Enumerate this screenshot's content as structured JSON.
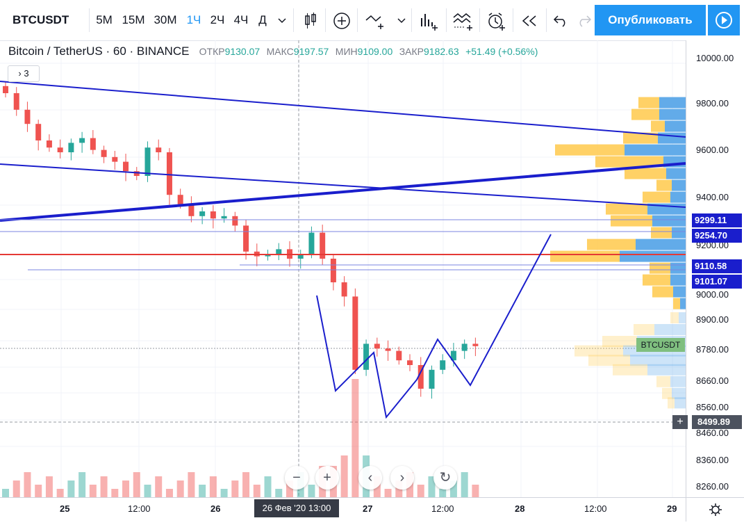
{
  "toolbar": {
    "symbol": "BTCUSDT",
    "intervals": [
      "5М",
      "15М",
      "30М",
      "1Ч",
      "2Ч",
      "4Ч",
      "Д"
    ],
    "active_interval": "1Ч",
    "publish_label": "Опубликовать"
  },
  "legend": {
    "title": "Bitcoin / TetherUS · 60 · BINANCE",
    "open_label": "ОТКР",
    "open": "9130.07",
    "high_label": "МАКС",
    "high": "9197.57",
    "low_label": "МИН",
    "low": "9109.00",
    "close_label": "ЗАКР",
    "close": "9182.63",
    "change": "+51.49 (+0.56%)",
    "indicators_count": "3"
  },
  "price_axis": {
    "ticks": [
      "10000.00",
      "9800.00",
      "9600.00",
      "9400.00",
      "9200.00",
      "9000.00",
      "8900.00",
      "8780.00",
      "8660.00",
      "8560.00",
      "8460.00",
      "8360.00",
      "8260.00"
    ],
    "labels": [
      "9299.11",
      "9254.70",
      "9110.58",
      "9101.07"
    ],
    "crosshair_price": "8499.89",
    "symbol_tag": "BTCUSDT"
  },
  "time_axis": {
    "labels": [
      "25",
      "12:00",
      "26",
      "27",
      "12:00",
      "28",
      "12:00",
      "29"
    ],
    "crosshair_date": "26 Фев '20   13:00"
  },
  "colors": {
    "up": "#26a69a",
    "down": "#ef5350",
    "accent": "#2196f3",
    "trend": "#1a1ecc",
    "red_line": "#e53935",
    "vp_up": "#ffcc55",
    "vp_down": "#5aa7e8"
  },
  "chart_data": {
    "type": "candlestick",
    "symbol": "BTCUSDT",
    "interval": "60",
    "approx_close_series": [
      9850,
      9780,
      9720,
      9650,
      9620,
      9600,
      9640,
      9660,
      9610,
      9580,
      9560,
      9520,
      9500,
      9620,
      9600,
      9420,
      9380,
      9330,
      9350,
      9320,
      9330,
      9290,
      9180,
      9160,
      9170,
      9190,
      9150,
      9170,
      9260,
      9150,
      9050,
      8990,
      8680,
      8790,
      8770,
      8760,
      8720,
      8700,
      8600,
      8680,
      8720,
      8760,
      8790,
      8780
    ],
    "ylim": [
      8230,
      10050
    ]
  }
}
